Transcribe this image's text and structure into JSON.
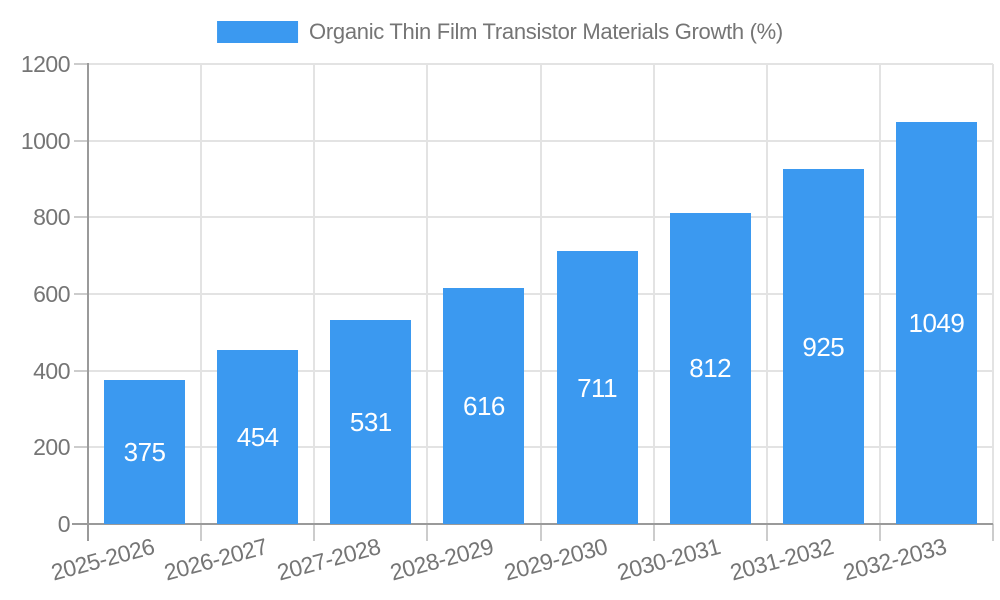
{
  "chart_data": {
    "type": "bar",
    "title": "Organic Thin Film Transistor Materials Growth (%)",
    "legend_position": "top",
    "categories": [
      "2025-2026",
      "2026-2027",
      "2027-2028",
      "2028-2029",
      "2029-2030",
      "2030-2031",
      "2031-2032",
      "2032-2033"
    ],
    "series": [
      {
        "name": "Organic Thin Film Transistor Materials Growth (%)",
        "values": [
          375,
          454,
          531,
          616,
          711,
          812,
          925,
          1049
        ]
      }
    ],
    "xlabel": "",
    "ylabel": "",
    "ylim": [
      0,
      1200
    ],
    "yticks": [
      0,
      200,
      400,
      600,
      800,
      1000,
      1200
    ],
    "grid": true,
    "bar_value_labels": [
      375,
      454,
      531,
      616,
      711,
      812,
      925,
      1049
    ],
    "colors": {
      "bar": "#3B99F0",
      "bar_label": "#FFFFFF",
      "axis_text": "#757575",
      "axis_line": "#9A9A9A",
      "tick": "#CCCCCC",
      "grid_line": "#E3E3E3",
      "background": "#FFFFFF"
    }
  }
}
